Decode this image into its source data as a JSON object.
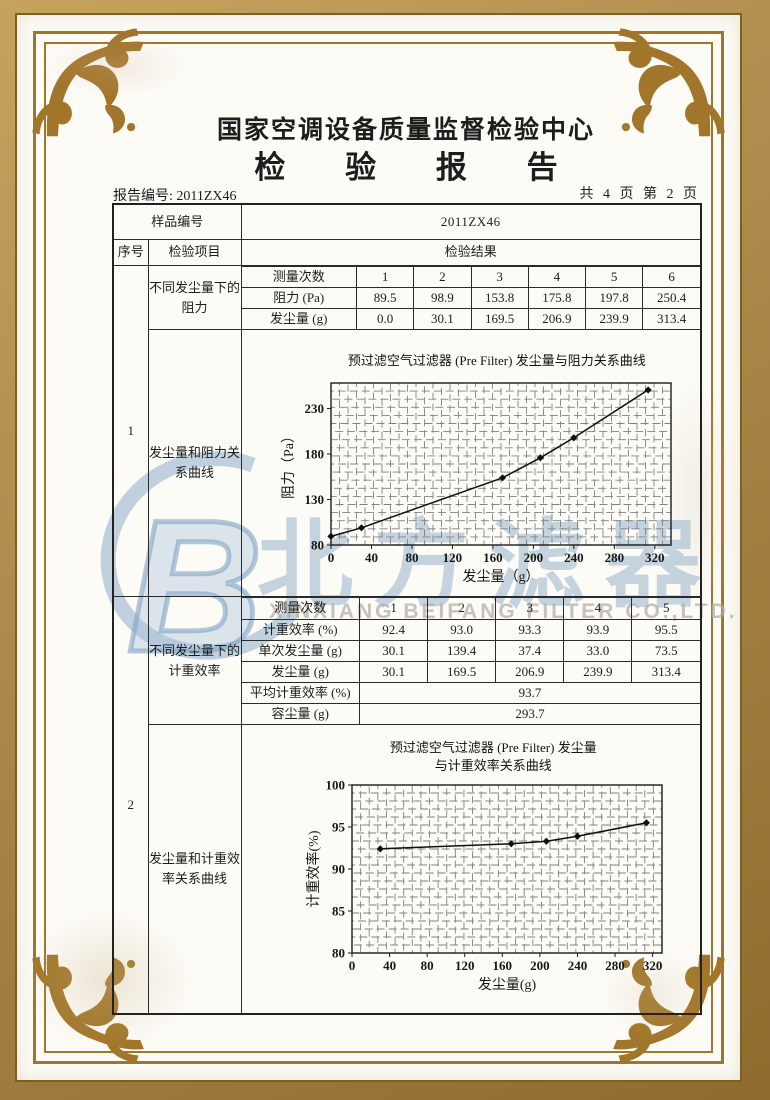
{
  "doc": {
    "center_name": "国家空调设备质量监督检验中心",
    "report_title": "检 验 报 告",
    "report_no": "报告编号: 2011ZX46",
    "page_info": "共 4 页 第 2 页"
  },
  "table": {
    "sample_label": "样品编号",
    "sample_value": "2011ZX46",
    "headers": {
      "serial": "序号",
      "item": "检验项目",
      "result": "检验结果"
    },
    "sections": [
      {
        "serial": "1",
        "item_top": "不同发尘量下的阻力",
        "item_bottom": "发尘量和阻力关系曲线",
        "table": {
          "cols": 6,
          "rows": [
            {
              "label": "测量次数",
              "values": [
                "1",
                "2",
                "3",
                "4",
                "5",
                "6"
              ]
            },
            {
              "label": "阻力 (Pa)",
              "values": [
                "89.5",
                "98.9",
                "153.8",
                "175.8",
                "197.8",
                "250.4"
              ]
            },
            {
              "label": "发尘量 (g)",
              "values": [
                "0.0",
                "30.1",
                "169.5",
                "206.9",
                "239.9",
                "313.4"
              ]
            }
          ]
        }
      },
      {
        "serial": "2",
        "item_top": "不同发尘量下的计重效率",
        "item_bottom": "发尘量和计重效率关系曲线",
        "table": {
          "cols": 5,
          "rows": [
            {
              "label": "测量次数",
              "values": [
                "1",
                "2",
                "3",
                "4",
                "5"
              ]
            },
            {
              "label": "计重效率 (%)",
              "values": [
                "92.4",
                "93.0",
                "93.3",
                "93.9",
                "95.5"
              ]
            },
            {
              "label": "单次发尘量 (g)",
              "values": [
                "30.1",
                "139.4",
                "37.4",
                "33.0",
                "73.5"
              ]
            },
            {
              "label": "发尘量 (g)",
              "values": [
                "30.1",
                "169.5",
                "206.9",
                "239.9",
                "313.4"
              ]
            },
            {
              "label": "平均计重效率 (%)",
              "merged": "93.7"
            },
            {
              "label": "容尘量 (g)",
              "merged": "293.7"
            }
          ]
        }
      }
    ]
  },
  "chart_data": [
    {
      "type": "line",
      "title": "预过滤空气过滤器 (Pre Filter) 发尘量与阻力关系曲线",
      "xlabel": "发尘量（g）",
      "ylabel": "阻力（Pa）",
      "x": [
        0,
        30.1,
        169.5,
        206.9,
        239.9,
        313.4
      ],
      "y": [
        89.5,
        98.9,
        153.8,
        175.8,
        197.8,
        250.4
      ],
      "xlim": [
        0,
        336
      ],
      "ylim": [
        80,
        258
      ],
      "xticks": [
        0,
        40,
        80,
        120,
        160,
        200,
        240,
        280,
        320
      ],
      "yticks": [
        80,
        130,
        180,
        230
      ],
      "grid": "on",
      "legend": "none"
    },
    {
      "type": "line",
      "title_line1": "预过滤空气过滤器 (Pre Filter) 发尘量",
      "title_line2": "与计重效率关系曲线",
      "xlabel": "发尘量(g)",
      "ylabel": "计重效率(%)",
      "x": [
        30.1,
        169.5,
        206.9,
        239.9,
        313.4
      ],
      "y": [
        92.4,
        93.0,
        93.3,
        93.9,
        95.5
      ],
      "xlim": [
        0,
        330
      ],
      "ylim": [
        80,
        100
      ],
      "xticks": [
        0,
        40,
        80,
        120,
        160,
        200,
        240,
        280,
        320
      ],
      "yticks": [
        80,
        85,
        90,
        95,
        100
      ],
      "grid": "on",
      "legend": "none"
    }
  ],
  "watermark": {
    "cn": "北方滤器",
    "en": "XINXIANG BEIFANG FILTER CO.,LTD.",
    "logo_letter": "B",
    "color_blue": "#8eabc7",
    "color_gray": "#b2afa6"
  },
  "frame": {
    "band_color": "#ab874a",
    "line_color": "#a2762a",
    "paper_color": "#fcfbf6"
  }
}
